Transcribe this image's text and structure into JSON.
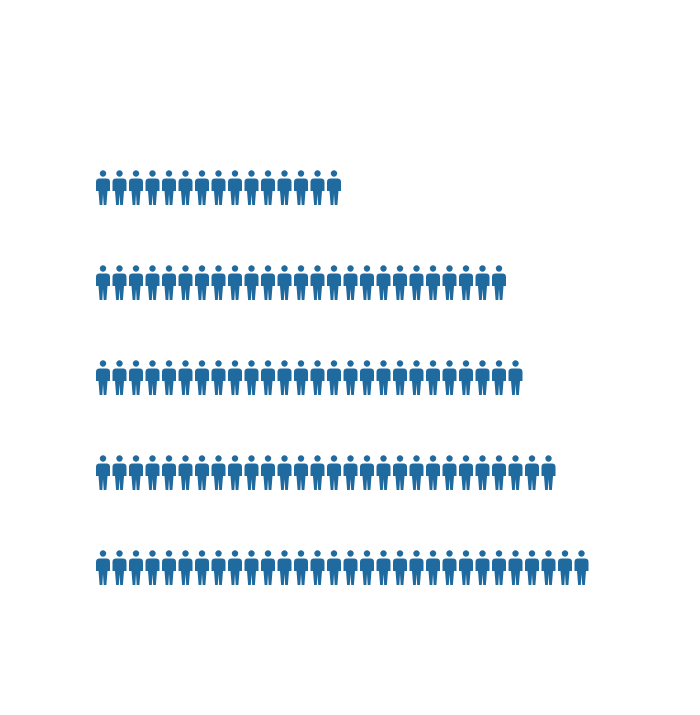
{
  "chart_data": {
    "type": "pictogram",
    "values": [
      15,
      25,
      26,
      28,
      30
    ],
    "color": "#1f6a9f"
  }
}
